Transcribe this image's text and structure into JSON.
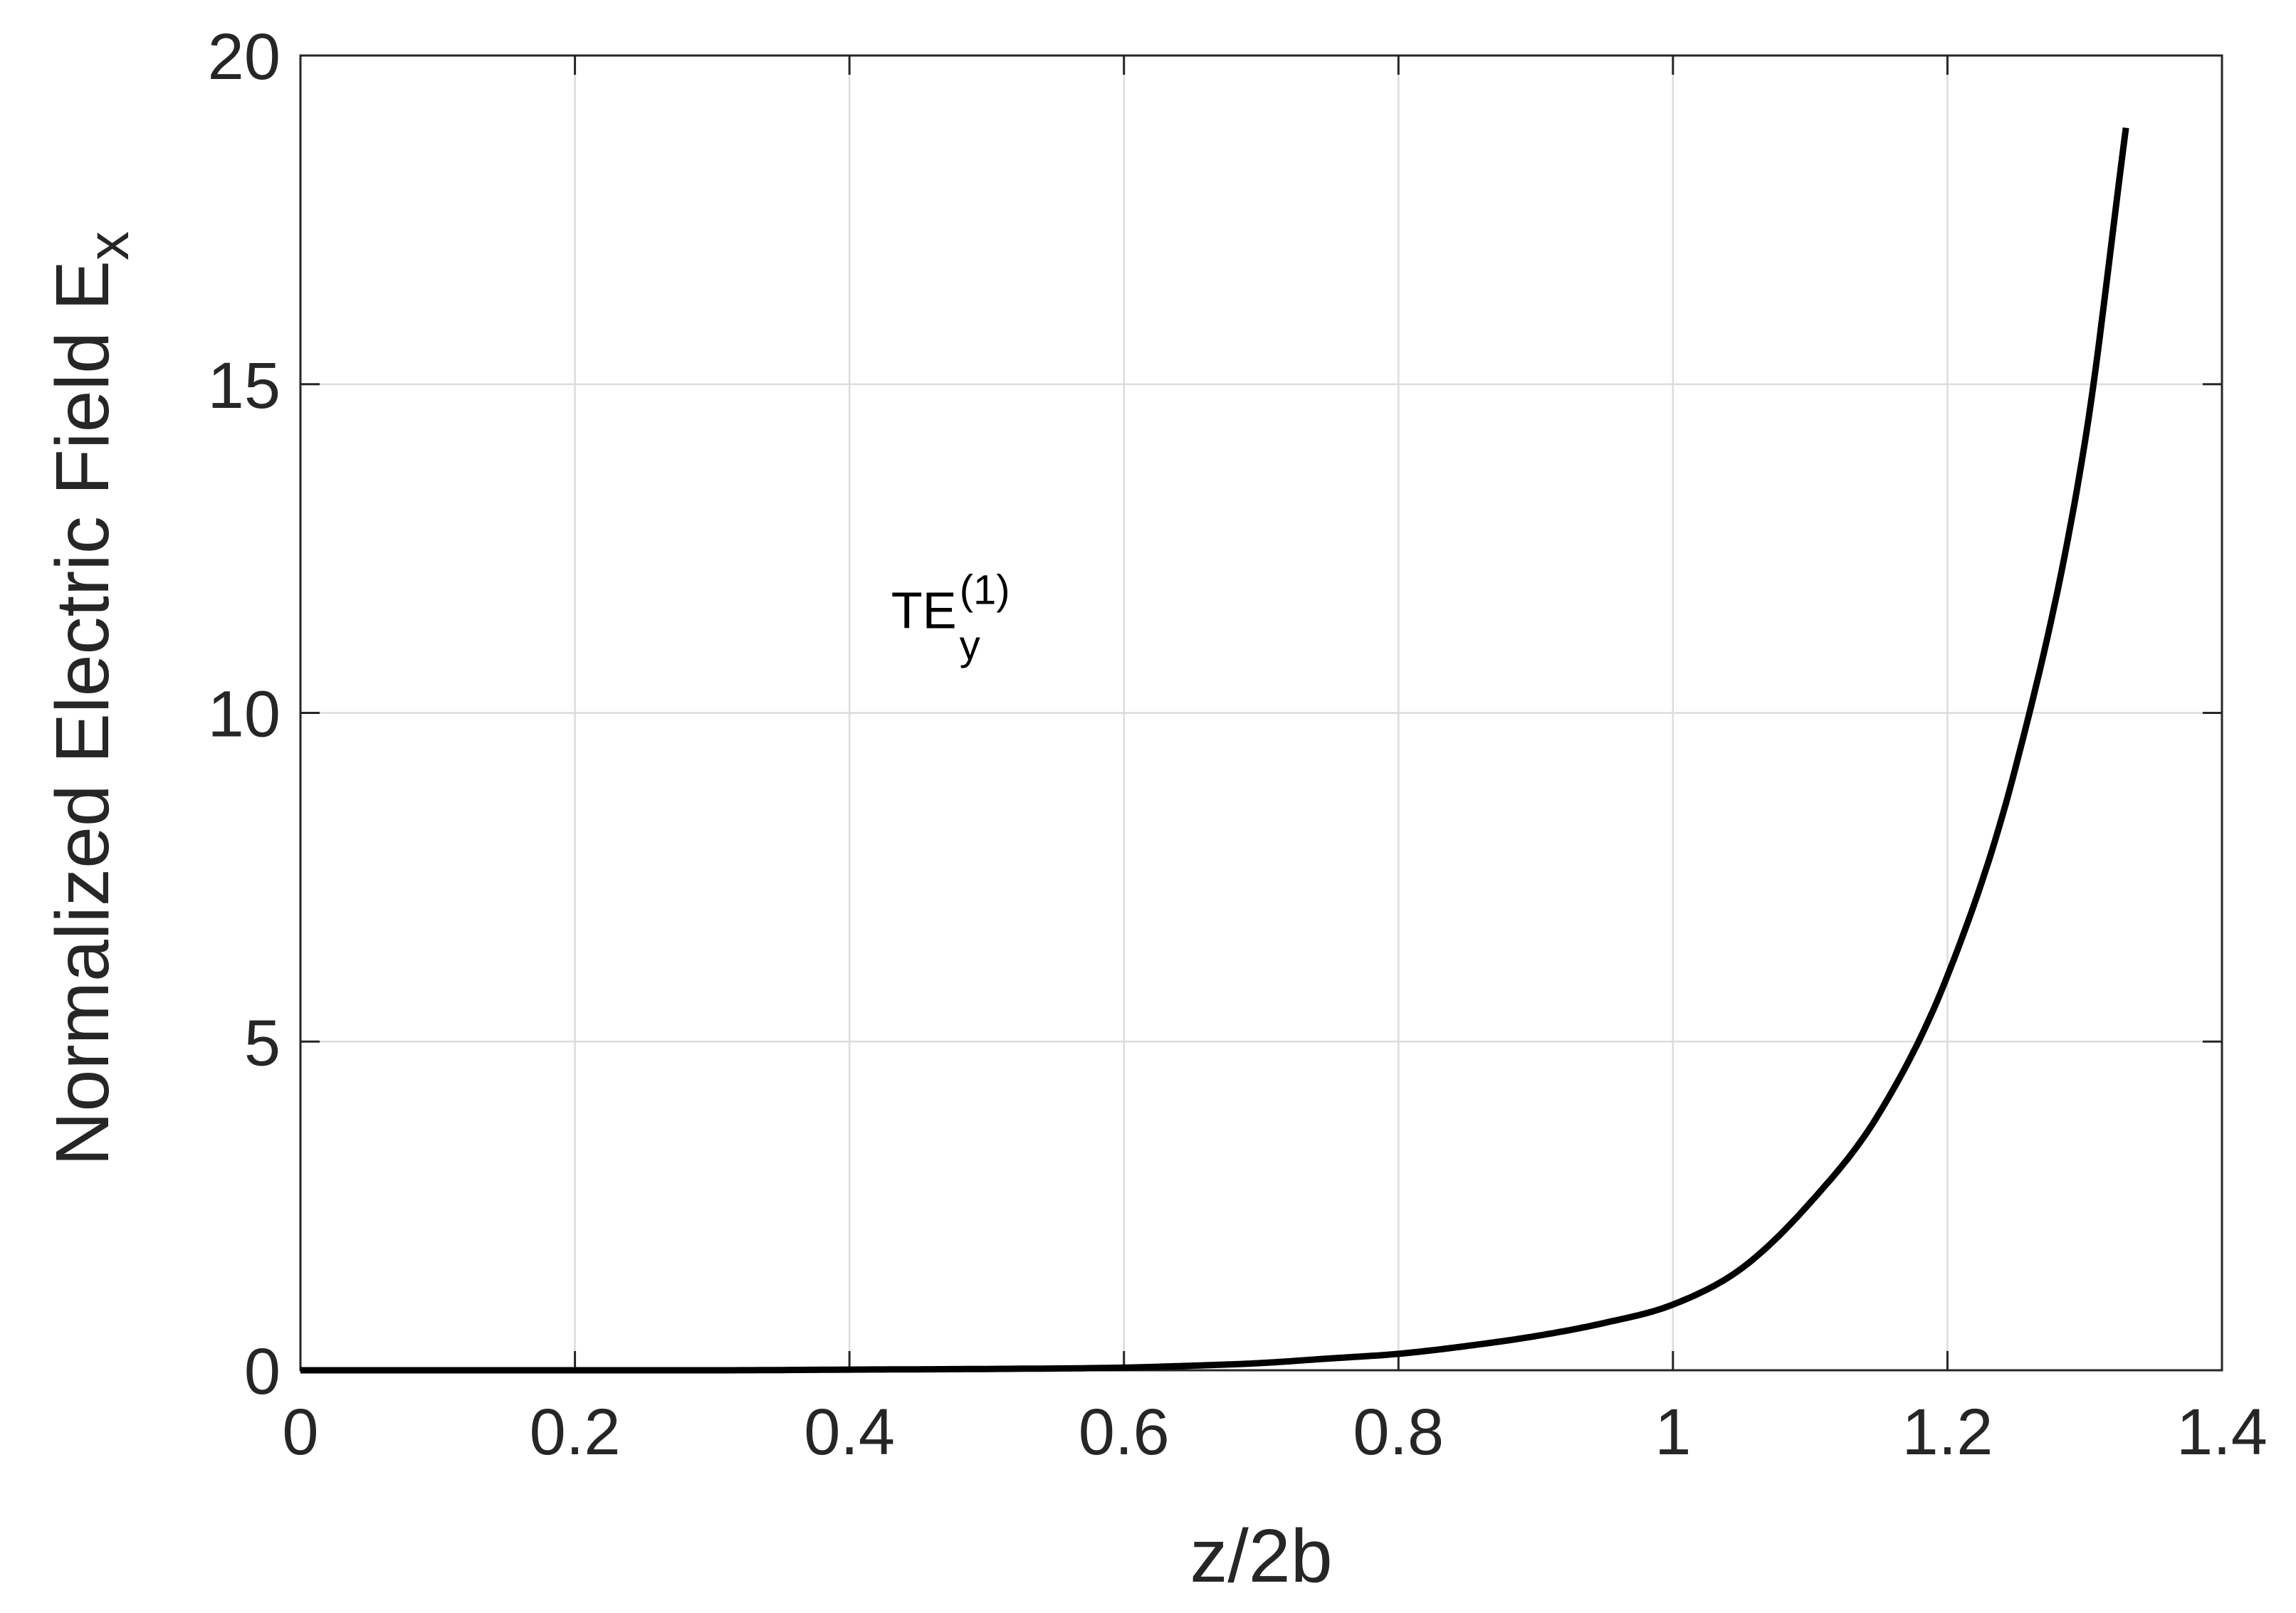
{
  "chart_data": {
    "type": "line",
    "title": "",
    "xlabel": "z/2b",
    "ylabel": {
      "main": "Normalized Electric Field E",
      "subscript": "x"
    },
    "xlim": [
      0,
      1.4
    ],
    "ylim": [
      0,
      20
    ],
    "xticks": [
      0,
      0.2,
      0.4,
      0.6,
      0.8,
      1,
      1.2,
      1.4
    ],
    "xtick_labels": [
      "0",
      "0.2",
      "0.4",
      "0.6",
      "0.8",
      "1",
      "1.2",
      "1.4"
    ],
    "yticks": [
      0,
      5,
      10,
      15,
      20
    ],
    "ytick_labels": [
      "0",
      "5",
      "10",
      "15",
      "20"
    ],
    "grid": true,
    "box": true,
    "series": [
      {
        "color": "#000000",
        "x": [
          0,
          0.1,
          0.2,
          0.3,
          0.4,
          0.5,
          0.6,
          0.65,
          0.7,
          0.75,
          0.8,
          0.85,
          0.9,
          0.95,
          1.0,
          1.05,
          1.1,
          1.15,
          1.2,
          1.25,
          1.3,
          1.33
        ],
        "y": [
          0.0,
          0.0,
          0.0,
          0.0,
          0.01,
          0.02,
          0.04,
          0.07,
          0.11,
          0.18,
          0.25,
          0.37,
          0.52,
          0.72,
          1.0,
          1.55,
          2.55,
          3.9,
          6.0,
          9.2,
          14.1,
          18.9
        ]
      }
    ],
    "annotation": {
      "base": "TE",
      "subscript": "y",
      "superscript": "(1)",
      "x": 0.42,
      "y": 11.7
    }
  }
}
